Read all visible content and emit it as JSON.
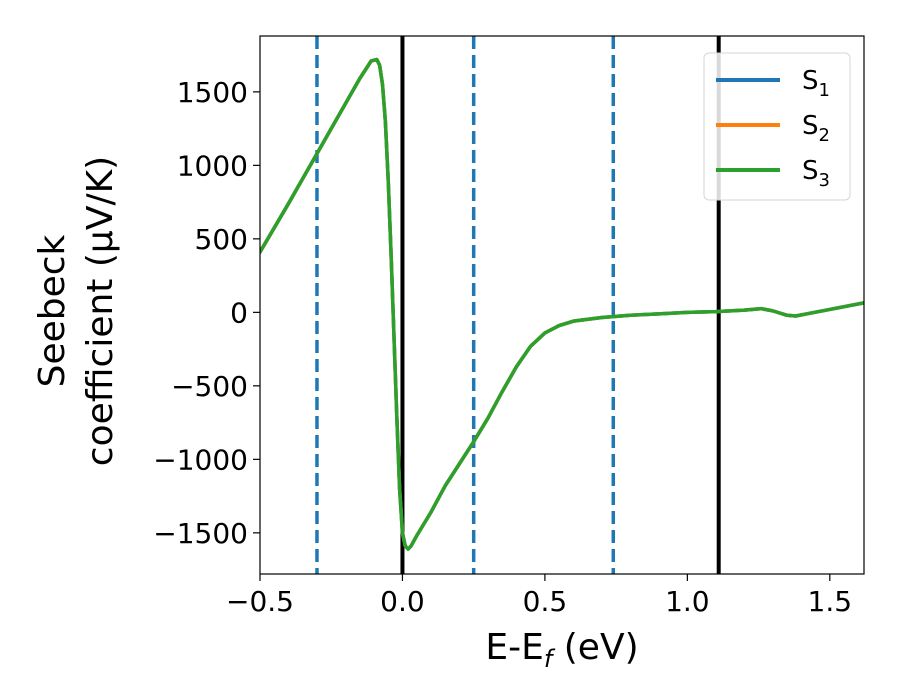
{
  "chart_data": {
    "type": "line",
    "xlabel": {
      "main": "E-E",
      "sub": "f",
      "unit": " (eV)"
    },
    "ylabel": {
      "line1": "Seebeck",
      "line2": "coefficient  (μV/K)"
    },
    "xlim": [
      -0.5,
      1.62
    ],
    "ylim": [
      -1780,
      1880
    ],
    "xticks": [
      -0.5,
      0.0,
      0.5,
      1.0,
      1.5
    ],
    "xtick_labels": [
      "−0.5",
      "0.0",
      "0.5",
      "1.0",
      "1.5"
    ],
    "yticks": [
      -1500,
      -1000,
      -500,
      0,
      500,
      1000,
      1500
    ],
    "ytick_labels": [
      "−1500",
      "−1000",
      "−500",
      "0",
      "500",
      "1000",
      "1500"
    ],
    "grid": false,
    "legend": {
      "placement": "top-right",
      "entries": [
        {
          "label": "S",
          "sub": "1",
          "color": "#1f77b4"
        },
        {
          "label": "S",
          "sub": "2",
          "color": "#ff7f0e"
        },
        {
          "label": "S",
          "sub": "3",
          "color": "#2ca02c"
        }
      ]
    },
    "vlines": [
      {
        "x": -0.3,
        "style": "dashed",
        "color": "#1f77b4"
      },
      {
        "x": 0.0,
        "style": "solid",
        "color": "#000000"
      },
      {
        "x": 0.25,
        "style": "dashed",
        "color": "#1f77b4"
      },
      {
        "x": 0.74,
        "style": "dashed",
        "color": "#1f77b4"
      },
      {
        "x": 1.11,
        "style": "solid",
        "color": "#000000"
      }
    ],
    "series": [
      {
        "name": "S1",
        "color": "#1f77b4",
        "x": [
          -0.5,
          -0.4,
          -0.3,
          -0.2,
          -0.15,
          -0.11,
          -0.09,
          -0.08,
          -0.07,
          -0.06,
          -0.05,
          -0.04,
          -0.03,
          -0.02,
          -0.01,
          0.0,
          0.01,
          0.02,
          0.03,
          0.05,
          0.1,
          0.15,
          0.2,
          0.25,
          0.3,
          0.35,
          0.4,
          0.45,
          0.5,
          0.55,
          0.6,
          0.7,
          0.8,
          0.9,
          1.0,
          1.1,
          1.2,
          1.26,
          1.3,
          1.35,
          1.38,
          1.42,
          1.5,
          1.62
        ],
        "y": [
          410,
          740,
          1080,
          1420,
          1590,
          1710,
          1720,
          1680,
          1550,
          1300,
          900,
          400,
          -150,
          -700,
          -1200,
          -1500,
          -1590,
          -1610,
          -1590,
          -1520,
          -1360,
          -1180,
          -1030,
          -880,
          -720,
          -540,
          -370,
          -230,
          -140,
          -90,
          -60,
          -35,
          -20,
          -10,
          0,
          5,
          15,
          25,
          10,
          -20,
          -25,
          -10,
          20,
          65
        ]
      },
      {
        "name": "S2",
        "color": "#ff7f0e",
        "x": [
          -0.5,
          -0.4,
          -0.3,
          -0.2,
          -0.15,
          -0.11,
          -0.09,
          -0.08,
          -0.07,
          -0.06,
          -0.05,
          -0.04,
          -0.03,
          -0.02,
          -0.01,
          0.0,
          0.01,
          0.02,
          0.03,
          0.05,
          0.1,
          0.15,
          0.2,
          0.25,
          0.3,
          0.35,
          0.4,
          0.45,
          0.5,
          0.55,
          0.6,
          0.7,
          0.8,
          0.9,
          1.0,
          1.1,
          1.2,
          1.26,
          1.3,
          1.35,
          1.38,
          1.42,
          1.5,
          1.62
        ],
        "y": [
          410,
          740,
          1080,
          1420,
          1590,
          1710,
          1720,
          1680,
          1550,
          1300,
          900,
          400,
          -150,
          -700,
          -1200,
          -1500,
          -1590,
          -1610,
          -1590,
          -1520,
          -1360,
          -1180,
          -1030,
          -880,
          -720,
          -540,
          -370,
          -230,
          -140,
          -90,
          -60,
          -35,
          -20,
          -10,
          0,
          5,
          15,
          25,
          10,
          -20,
          -25,
          -10,
          20,
          65
        ]
      },
      {
        "name": "S3",
        "color": "#2ca02c",
        "x": [
          -0.5,
          -0.4,
          -0.3,
          -0.2,
          -0.15,
          -0.11,
          -0.09,
          -0.08,
          -0.07,
          -0.06,
          -0.05,
          -0.04,
          -0.03,
          -0.02,
          -0.01,
          0.0,
          0.01,
          0.02,
          0.03,
          0.05,
          0.1,
          0.15,
          0.2,
          0.25,
          0.3,
          0.35,
          0.4,
          0.45,
          0.5,
          0.55,
          0.6,
          0.7,
          0.8,
          0.9,
          1.0,
          1.1,
          1.2,
          1.26,
          1.3,
          1.35,
          1.38,
          1.42,
          1.5,
          1.62
        ],
        "y": [
          410,
          740,
          1080,
          1420,
          1590,
          1710,
          1720,
          1680,
          1550,
          1300,
          900,
          400,
          -150,
          -700,
          -1200,
          -1500,
          -1590,
          -1610,
          -1590,
          -1520,
          -1360,
          -1180,
          -1030,
          -880,
          -720,
          -540,
          -370,
          -230,
          -140,
          -90,
          -60,
          -35,
          -20,
          -10,
          0,
          5,
          15,
          25,
          10,
          -20,
          -25,
          -10,
          20,
          65
        ]
      }
    ]
  }
}
